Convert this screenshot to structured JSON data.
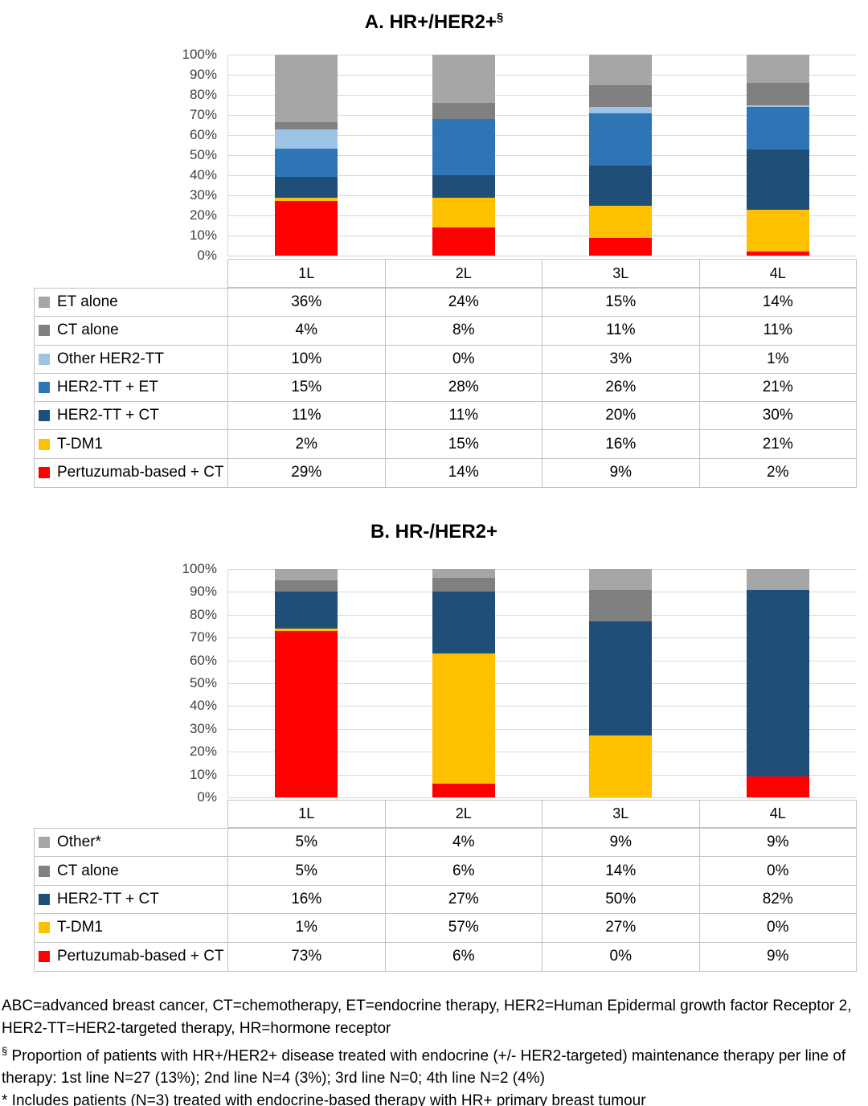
{
  "chart_data": [
    {
      "type": "bar",
      "stacked": true,
      "normalized_to_100_percent": true,
      "title": "A. HR+/HER2+",
      "title_superscript": "§",
      "categories": [
        "1L",
        "2L",
        "3L",
        "4L"
      ],
      "y_ticks": [
        "100%",
        "90%",
        "80%",
        "70%",
        "60%",
        "50%",
        "40%",
        "30%",
        "20%",
        "10%",
        "0%"
      ],
      "ylim": [
        0,
        100
      ],
      "grid": "horizontal",
      "legend_position": "table-left",
      "value_suffix": "%",
      "series": [
        {
          "name": "ET alone",
          "color": "#A6A6A6",
          "values": [
            36,
            24,
            15,
            14
          ]
        },
        {
          "name": "CT alone",
          "color": "#808080",
          "values": [
            4,
            8,
            11,
            11
          ]
        },
        {
          "name": "Other HER2-TT",
          "color": "#9DC3E6",
          "values": [
            10,
            0,
            3,
            1
          ]
        },
        {
          "name": "HER2-TT + ET",
          "color": "#2E75B6",
          "values": [
            15,
            28,
            26,
            21
          ]
        },
        {
          "name": "HER2-TT + CT",
          "color": "#1F4E79",
          "values": [
            11,
            11,
            20,
            30
          ]
        },
        {
          "name": "T-DM1",
          "color": "#FFC000",
          "values": [
            2,
            15,
            16,
            21
          ]
        },
        {
          "name": "Pertuzumab-based + CT",
          "color": "#FF0000",
          "values": [
            29,
            14,
            9,
            2
          ]
        }
      ]
    },
    {
      "type": "bar",
      "stacked": true,
      "normalized_to_100_percent": true,
      "title": "B. HR-/HER2+",
      "title_superscript": "",
      "categories": [
        "1L",
        "2L",
        "3L",
        "4L"
      ],
      "y_ticks": [
        "100%",
        "90%",
        "80%",
        "70%",
        "60%",
        "50%",
        "40%",
        "30%",
        "20%",
        "10%",
        "0%"
      ],
      "ylim": [
        0,
        100
      ],
      "grid": "horizontal",
      "legend_position": "table-left",
      "value_suffix": "%",
      "series": [
        {
          "name": "Other*",
          "color": "#A6A6A6",
          "values": [
            5,
            4,
            9,
            9
          ]
        },
        {
          "name": "CT alone",
          "color": "#808080",
          "values": [
            5,
            6,
            14,
            0
          ]
        },
        {
          "name": "HER2-TT + CT",
          "color": "#1F4E79",
          "values": [
            16,
            27,
            50,
            82
          ]
        },
        {
          "name": "T-DM1",
          "color": "#FFC000",
          "values": [
            1,
            57,
            27,
            0
          ]
        },
        {
          "name": "Pertuzumab-based + CT",
          "color": "#FF0000",
          "values": [
            73,
            6,
            0,
            9
          ]
        }
      ]
    }
  ],
  "footnotes": {
    "abbreviations": "ABC=advanced breast cancer, CT=chemotherapy, ET=endocrine therapy, HER2=Human Epidermal growth factor Receptor 2, HER2-TT=HER2-targeted therapy, HR=hormone receptor",
    "section_superscript": "§",
    "section_text": " Proportion of patients with HR+/HER2+ disease treated with endocrine (+/- HER2-targeted) maintenance therapy per line of therapy: 1st line N=27 (13%); 2nd line N=4 (3%); 3rd line N=0; 4th line N=2 (4%)",
    "asterisk_text": "* Includes patients (N=3) treated with endocrine-based therapy with HR+ primary breast tumour"
  }
}
